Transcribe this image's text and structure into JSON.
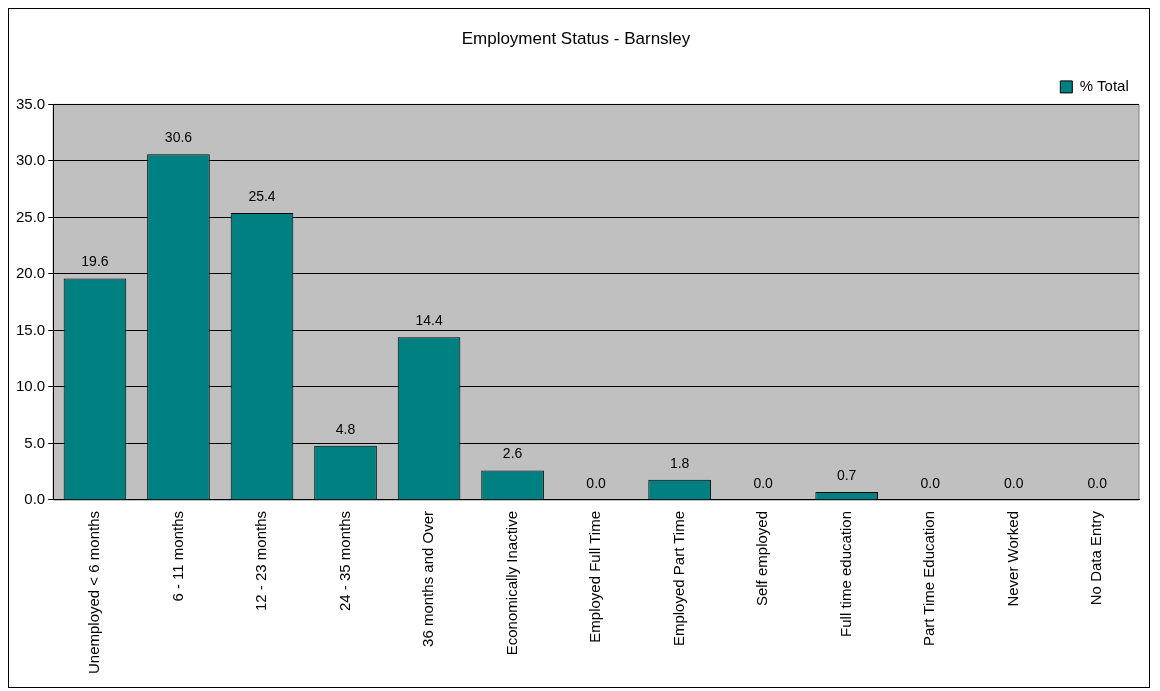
{
  "chart_data": {
    "type": "bar",
    "title": "Employment Status - Barnsley",
    "categories": [
      "Unemployed < 6 months",
      "6 - 11 months",
      "12 - 23 months",
      "24 - 35 months",
      "36 months and Over",
      "Economically Inactive",
      "Employed Full Time",
      "Employed Part Time",
      "Self employed",
      "Full time education",
      "Part Time Education",
      "Never Worked",
      "No Data Entry"
    ],
    "series": [
      {
        "name": "% Total",
        "color": "#008080",
        "values": [
          19.6,
          30.6,
          25.4,
          4.8,
          14.4,
          2.6,
          0.0,
          1.8,
          0.0,
          0.7,
          0.0,
          0.0,
          0.0
        ],
        "value_labels": [
          "19.6",
          "30.6",
          "25.4",
          "4.8",
          "14.4",
          "2.6",
          "0.0",
          "1.8",
          "0.0",
          "0.7",
          "0.0",
          "0.0",
          "0.0"
        ]
      }
    ],
    "ylim": [
      0,
      35
    ],
    "yticks": [
      {
        "value": 0,
        "label": "0.0"
      },
      {
        "value": 5,
        "label": "5.0"
      },
      {
        "value": 10,
        "label": "10.0"
      },
      {
        "value": 15,
        "label": "15.0"
      },
      {
        "value": 20,
        "label": "20.0"
      },
      {
        "value": 25,
        "label": "25.0"
      },
      {
        "value": 30,
        "label": "30.0"
      },
      {
        "value": 35,
        "label": "35.0"
      }
    ],
    "grid": "y",
    "legend": "top right"
  }
}
